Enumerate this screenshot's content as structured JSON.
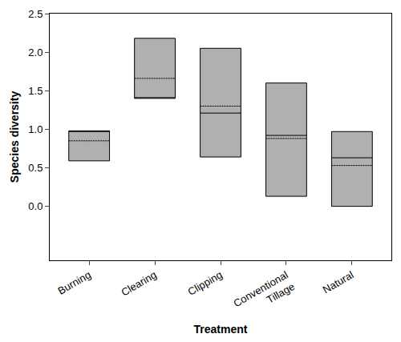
{
  "chart_data": {
    "type": "box",
    "x_label": "Treatment",
    "y_label": "Species diversity",
    "categories": [
      "Burning",
      "Clearing",
      "Clipping",
      "Conventional Tillage",
      "Natural"
    ],
    "lower": [
      0.59,
      1.4,
      0.64,
      0.13,
      0.0
    ],
    "upper": [
      0.98,
      2.18,
      2.05,
      1.6,
      0.97
    ],
    "median": [
      0.98,
      1.4,
      1.21,
      0.92,
      0.63
    ],
    "mean": [
      0.85,
      1.66,
      1.3,
      0.88,
      0.53
    ],
    "color": "#b0b0b0",
    "ylim": [
      -0.7,
      2.5
    ],
    "yticks": [
      {
        "value": 0,
        "label": "0.0"
      },
      {
        "value": 0.5,
        "label": "0.5"
      },
      {
        "value": 1,
        "label": "1.0"
      },
      {
        "value": 1.5,
        "label": "1.5"
      },
      {
        "value": 2,
        "label": "2.0"
      },
      {
        "value": 2.5,
        "label": "2.5"
      }
    ],
    "grid": false
  }
}
